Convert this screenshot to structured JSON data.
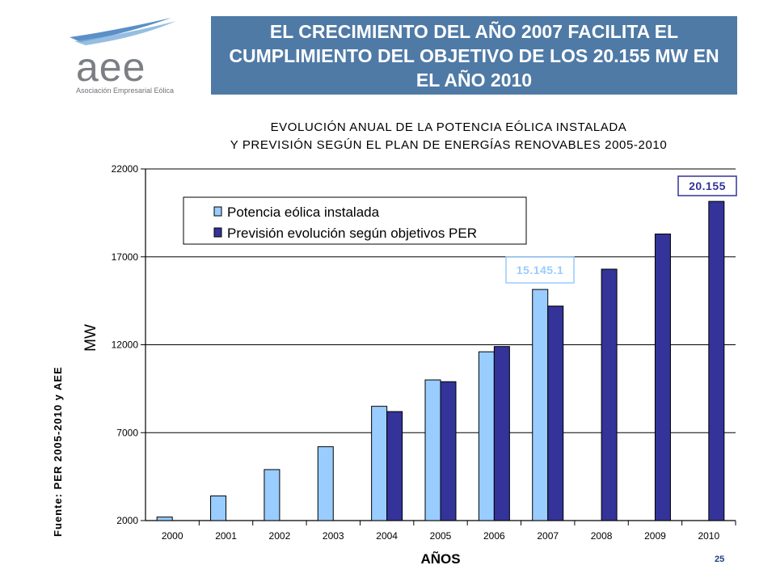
{
  "header": {
    "logo_text": "aee",
    "logo_subtitle": "Asociación Empresarial Eólica",
    "title": "EL CRECIMIENTO DEL AÑO 2007 FACILITA EL CUMPLIMIENTO DEL OBJETIVO DE LOS 20.155 MW EN EL AÑO 2010"
  },
  "source_note": "Fuente: PER 2005-2010 y AEE",
  "page_number": "25",
  "colors": {
    "header_bg": "#4f7aa6",
    "installed": "#99ccff",
    "forecast": "#333399",
    "label_installed_text": "#99ccff",
    "label_forecast_text": "#333399"
  },
  "chart_data": {
    "type": "bar",
    "title": "EVOLUCIÓN ANUAL DE LA POTENCIA EÓLICA INSTALADA",
    "subtitle": "Y PREVISIÓN SEGÚN EL PLAN DE ENERGÍAS RENOVABLES 2005-2010",
    "xlabel": "AÑOS",
    "ylabel": "MW",
    "ylim": [
      2000,
      22000
    ],
    "yticks": [
      2000,
      7000,
      12000,
      17000,
      22000
    ],
    "grid": true,
    "legend_position": "top-left",
    "categories": [
      "2000",
      "2001",
      "2002",
      "2003",
      "2004",
      "2005",
      "2006",
      "2007",
      "2008",
      "2009",
      "2010"
    ],
    "series": [
      {
        "name": "Potencia eólica instalada",
        "values": [
          2200,
          3400,
          4900,
          6200,
          8500,
          10000,
          11600,
          15145.1,
          null,
          null,
          null
        ]
      },
      {
        "name": "Previsión evolución según objetivos PER",
        "values": [
          null,
          null,
          null,
          null,
          8200,
          9900,
          11900,
          14200,
          16300,
          18300,
          20155
        ]
      }
    ],
    "annotations": [
      {
        "text": "15.145.1",
        "category": "2007",
        "series": 0
      },
      {
        "text": "20.155",
        "category": "2010",
        "series": 1
      }
    ]
  }
}
